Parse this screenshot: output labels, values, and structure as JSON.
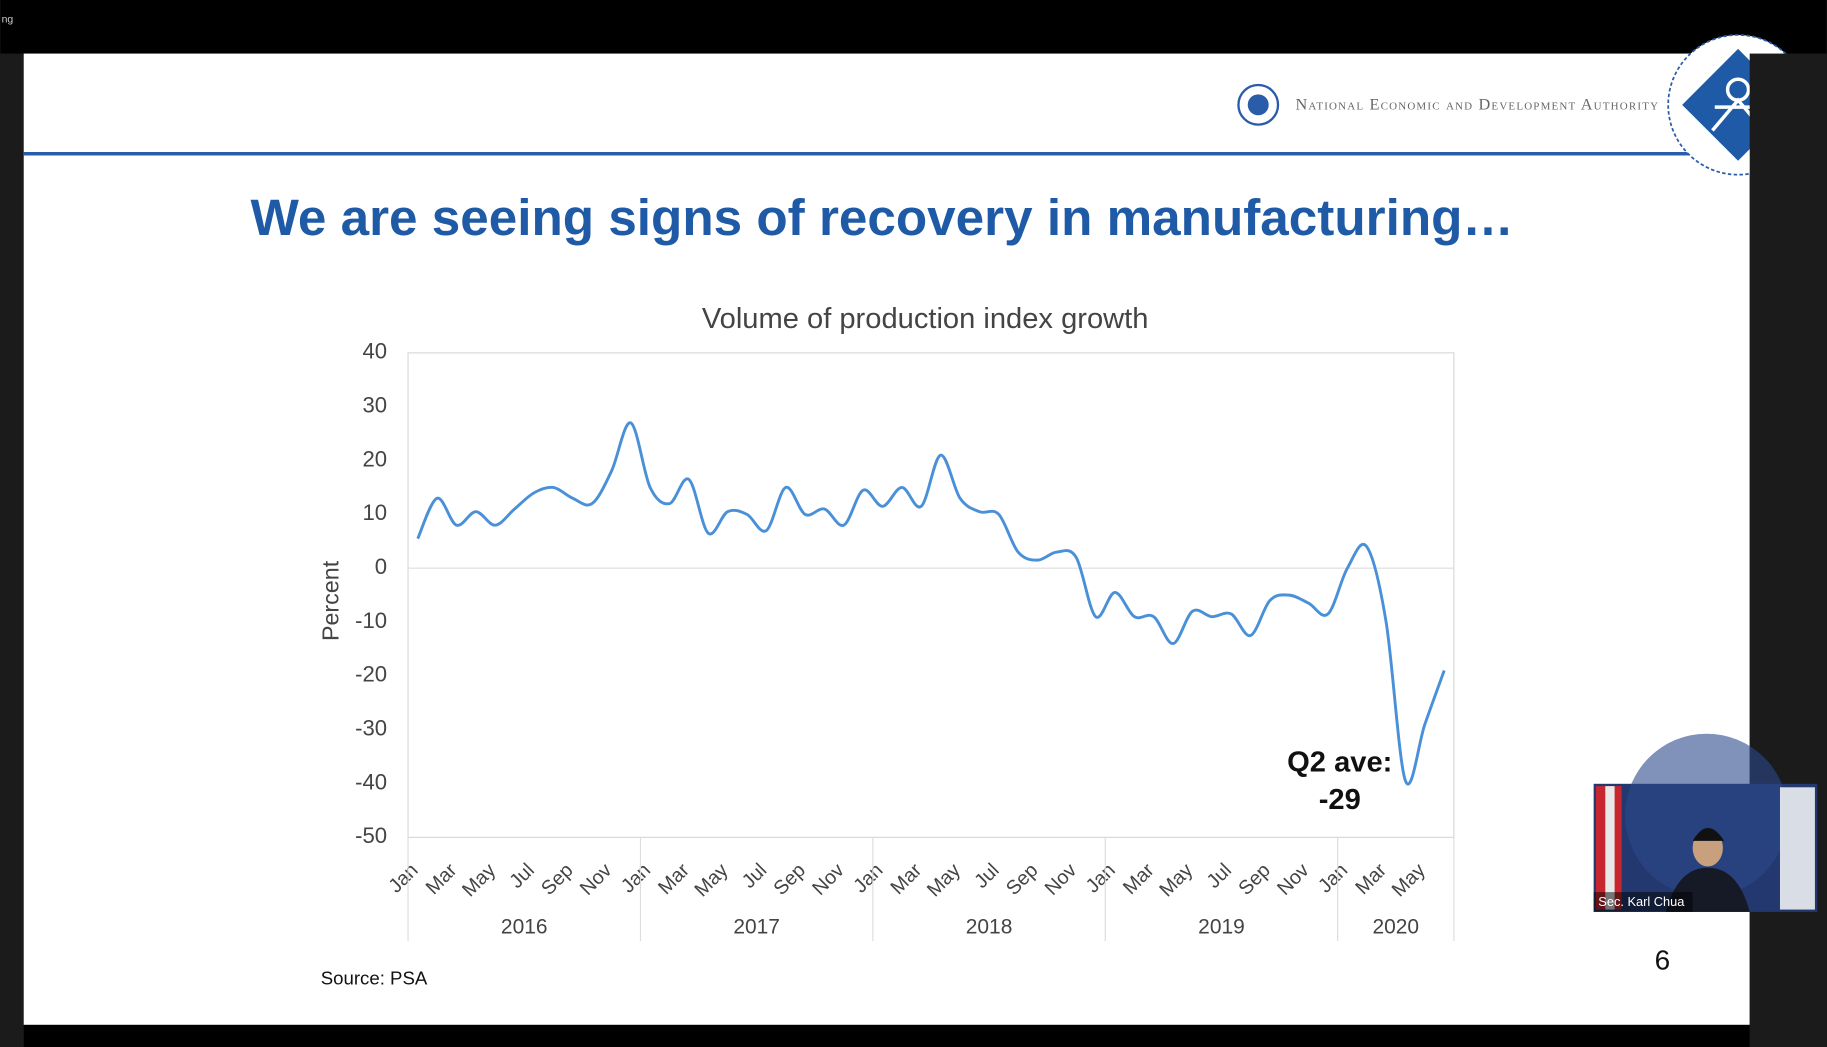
{
  "window": {
    "corner_text": "ng",
    "presenter_name": "Sec. Karl Chua"
  },
  "header": {
    "agency": "National Economic and Development Authority"
  },
  "slide": {
    "title": "We are seeing signs of recovery in manufacturing…",
    "source": "Source: PSA",
    "page_number": "6"
  },
  "chart_data": {
    "type": "line",
    "title": "Volume of production index growth",
    "y_label": "Percent",
    "categories": [
      "Jan",
      null,
      "Mar",
      null,
      "May",
      null,
      "Jul",
      null,
      "Sep",
      null,
      "Nov",
      null,
      "Jan",
      null,
      "Mar",
      null,
      "May",
      null,
      "Jul",
      null,
      "Sep",
      null,
      "Nov",
      null,
      "Jan",
      null,
      "Mar",
      null,
      "May",
      null,
      "Jul",
      null,
      "Sep",
      null,
      "Nov",
      null,
      "Jan",
      null,
      "Mar",
      null,
      "May",
      null,
      "Jul",
      null,
      "Sep",
      null,
      "Nov",
      null,
      "Jan",
      null,
      "Mar",
      null,
      "May",
      null
    ],
    "year_groups": [
      "2016",
      "2017",
      "2018",
      "2019",
      "2020"
    ],
    "series": [
      {
        "name": "Volume of production index growth",
        "color": "#4a90d9",
        "values": [
          5.5,
          13,
          8,
          10.5,
          8,
          11,
          14,
          15,
          13,
          12,
          18,
          27,
          15,
          12,
          16.5,
          6.5,
          10.5,
          10,
          7,
          15,
          10,
          11,
          8,
          14.5,
          11.5,
          15,
          11.5,
          21,
          13,
          10.5,
          10,
          3,
          1.5,
          3,
          2,
          -9,
          -4.5,
          -9,
          -9,
          -14,
          -8,
          -9,
          -8.5,
          -12.5,
          -6,
          -5,
          -6.5,
          -8.5,
          0,
          4,
          -10,
          -39.5,
          -29,
          -19
        ]
      }
    ],
    "ylim": [
      -50,
      40
    ],
    "yticks": [
      -50,
      -40,
      -30,
      -20,
      -10,
      0,
      10,
      20,
      30,
      40
    ],
    "zero_line": true,
    "grid": false,
    "annotation": [
      "Q2 ave:",
      "-29"
    ]
  }
}
